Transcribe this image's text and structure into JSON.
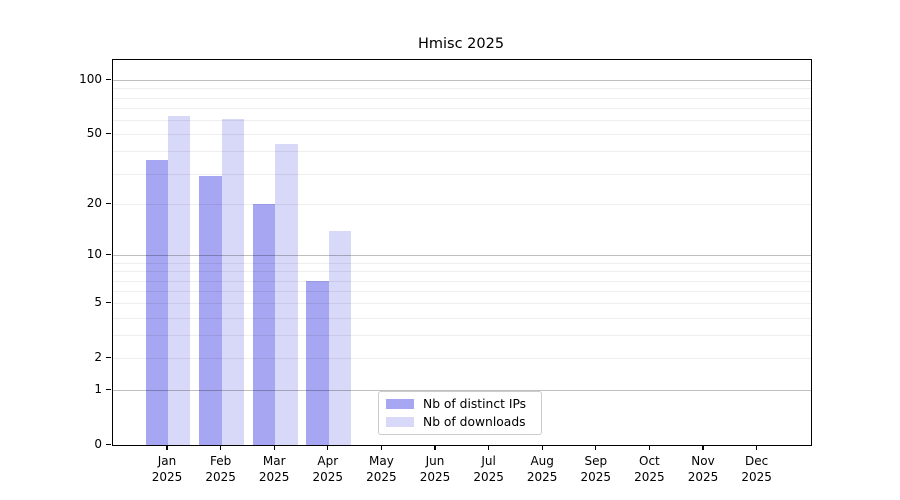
{
  "chart_data": {
    "type": "bar",
    "title": "Hmisc 2025",
    "categories": [
      "Jan",
      "Feb",
      "Mar",
      "Apr",
      "May",
      "Jun",
      "Jul",
      "Aug",
      "Sep",
      "Oct",
      "Nov",
      "Dec"
    ],
    "category_year": "2025",
    "series": [
      {
        "name": "Nb of distinct IPs",
        "color": "#a6a6f2",
        "values": [
          36,
          29,
          20,
          7,
          null,
          null,
          null,
          null,
          null,
          null,
          null,
          null
        ]
      },
      {
        "name": "Nb of downloads",
        "color": "#d8d8f8",
        "values": [
          63,
          61,
          44,
          14,
          null,
          null,
          null,
          null,
          null,
          null,
          null,
          null
        ]
      }
    ],
    "xlabel": "",
    "ylabel": "",
    "y_axis": {
      "scale": "log1p",
      "tick_values": [
        0,
        1,
        2,
        5,
        10,
        20,
        50,
        100
      ],
      "tick_labels": [
        "0",
        "1",
        "2",
        "5",
        "10",
        "20",
        "50",
        "100"
      ],
      "major_gridline_values": [
        1,
        10,
        100
      ],
      "minor_gridline_values": [
        2,
        3,
        4,
        5,
        6,
        7,
        8,
        9,
        20,
        30,
        40,
        50,
        60,
        70,
        80,
        90
      ],
      "ylim": [
        0,
        129
      ]
    },
    "grid": "on",
    "legend_position": "lower-center"
  }
}
